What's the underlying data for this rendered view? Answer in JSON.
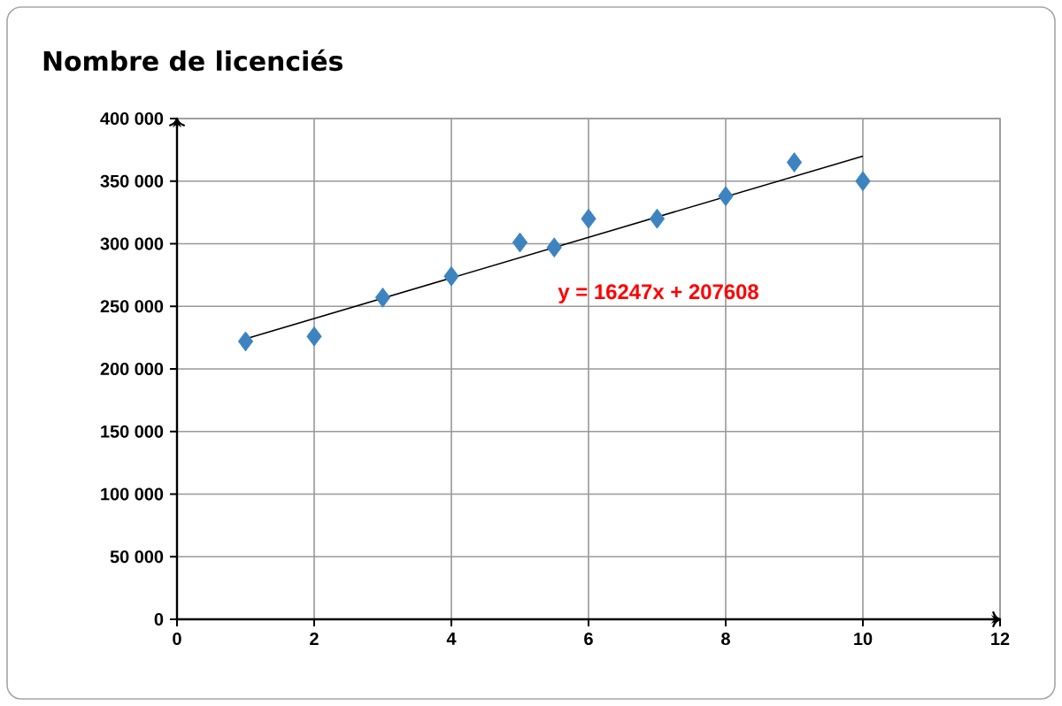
{
  "chart_data": {
    "type": "scatter",
    "title": "Nombre de licenciés",
    "x": [
      1,
      2,
      3,
      4,
      5,
      5.5,
      6,
      7,
      8,
      9,
      10
    ],
    "series": [
      {
        "color": "#3c83c0",
        "values": [
          222000,
          226000,
          257000,
          274000,
          301000,
          297000,
          320000,
          320000,
          338000,
          365000,
          350000
        ]
      },
      {
        "type": "line",
        "color": "#000000",
        "marker": "none",
        "x": [
          1,
          10
        ],
        "values": [
          224000,
          370000
        ]
      }
    ],
    "annotations": [
      "y = 16247x + 207608"
    ],
    "xlim": [
      0,
      12
    ],
    "xticks": [
      0,
      2,
      4,
      6,
      8,
      10,
      12
    ],
    "ylim": [
      0,
      400000
    ],
    "yticks": [
      0,
      {
        "value": 50000,
        "label": "50 000"
      },
      {
        "value": 100000,
        "label": "100 000"
      },
      {
        "value": 150000,
        "label": "150 000"
      },
      {
        "value": 200000,
        "label": "200 000"
      },
      {
        "value": 250000,
        "label": "250 000"
      },
      {
        "value": 300000,
        "label": "300 000"
      },
      {
        "value": 350000,
        "label": "350 000"
      },
      {
        "value": 400000,
        "label": "400 000"
      }
    ],
    "grid": true,
    "marker": "diamond"
  }
}
